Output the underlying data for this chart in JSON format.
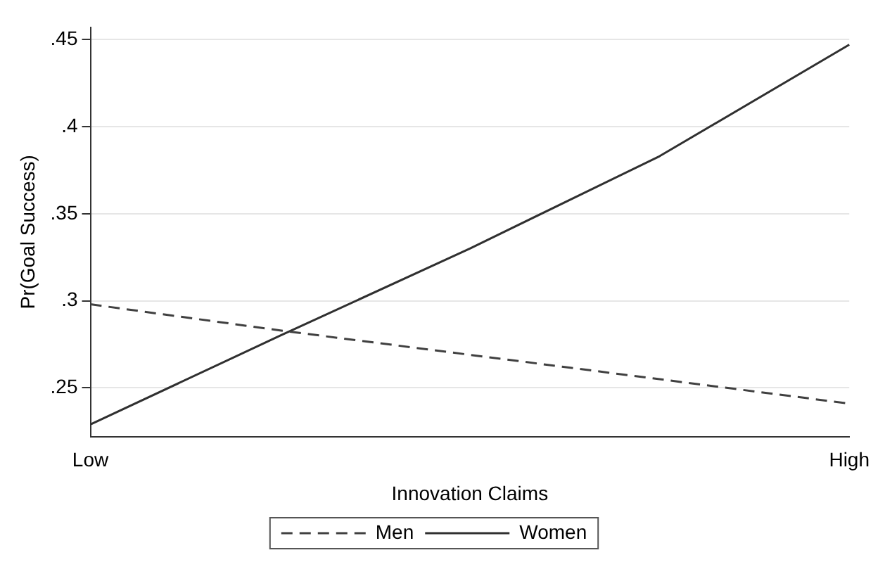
{
  "chart_data": {
    "type": "line",
    "xlabel": "Innovation Claims",
    "ylabel": "Pr(Goal Success)",
    "categories": [
      "Low",
      null,
      null,
      null,
      "High"
    ],
    "series": [
      {
        "name": "Men",
        "color": "#404040",
        "line_style": "dashed",
        "values": [
          0.298,
          0.283,
          0.269,
          0.255,
          0.241
        ]
      },
      {
        "name": "Women",
        "color": "#303030",
        "line_style": "solid",
        "values": [
          0.229,
          0.28,
          0.33,
          0.383,
          0.447
        ]
      }
    ],
    "ylim": [
      0.222,
      0.457
    ],
    "yticks": [
      {
        "value": 0.25,
        "label": ".25"
      },
      {
        "value": 0.3,
        "label": ".3"
      },
      {
        "value": 0.35,
        "label": ".35"
      },
      {
        "value": 0.4,
        "label": ".4"
      },
      {
        "value": 0.45,
        "label": ".45"
      }
    ],
    "grid": "y",
    "legend": "bottom",
    "marker": "none"
  }
}
